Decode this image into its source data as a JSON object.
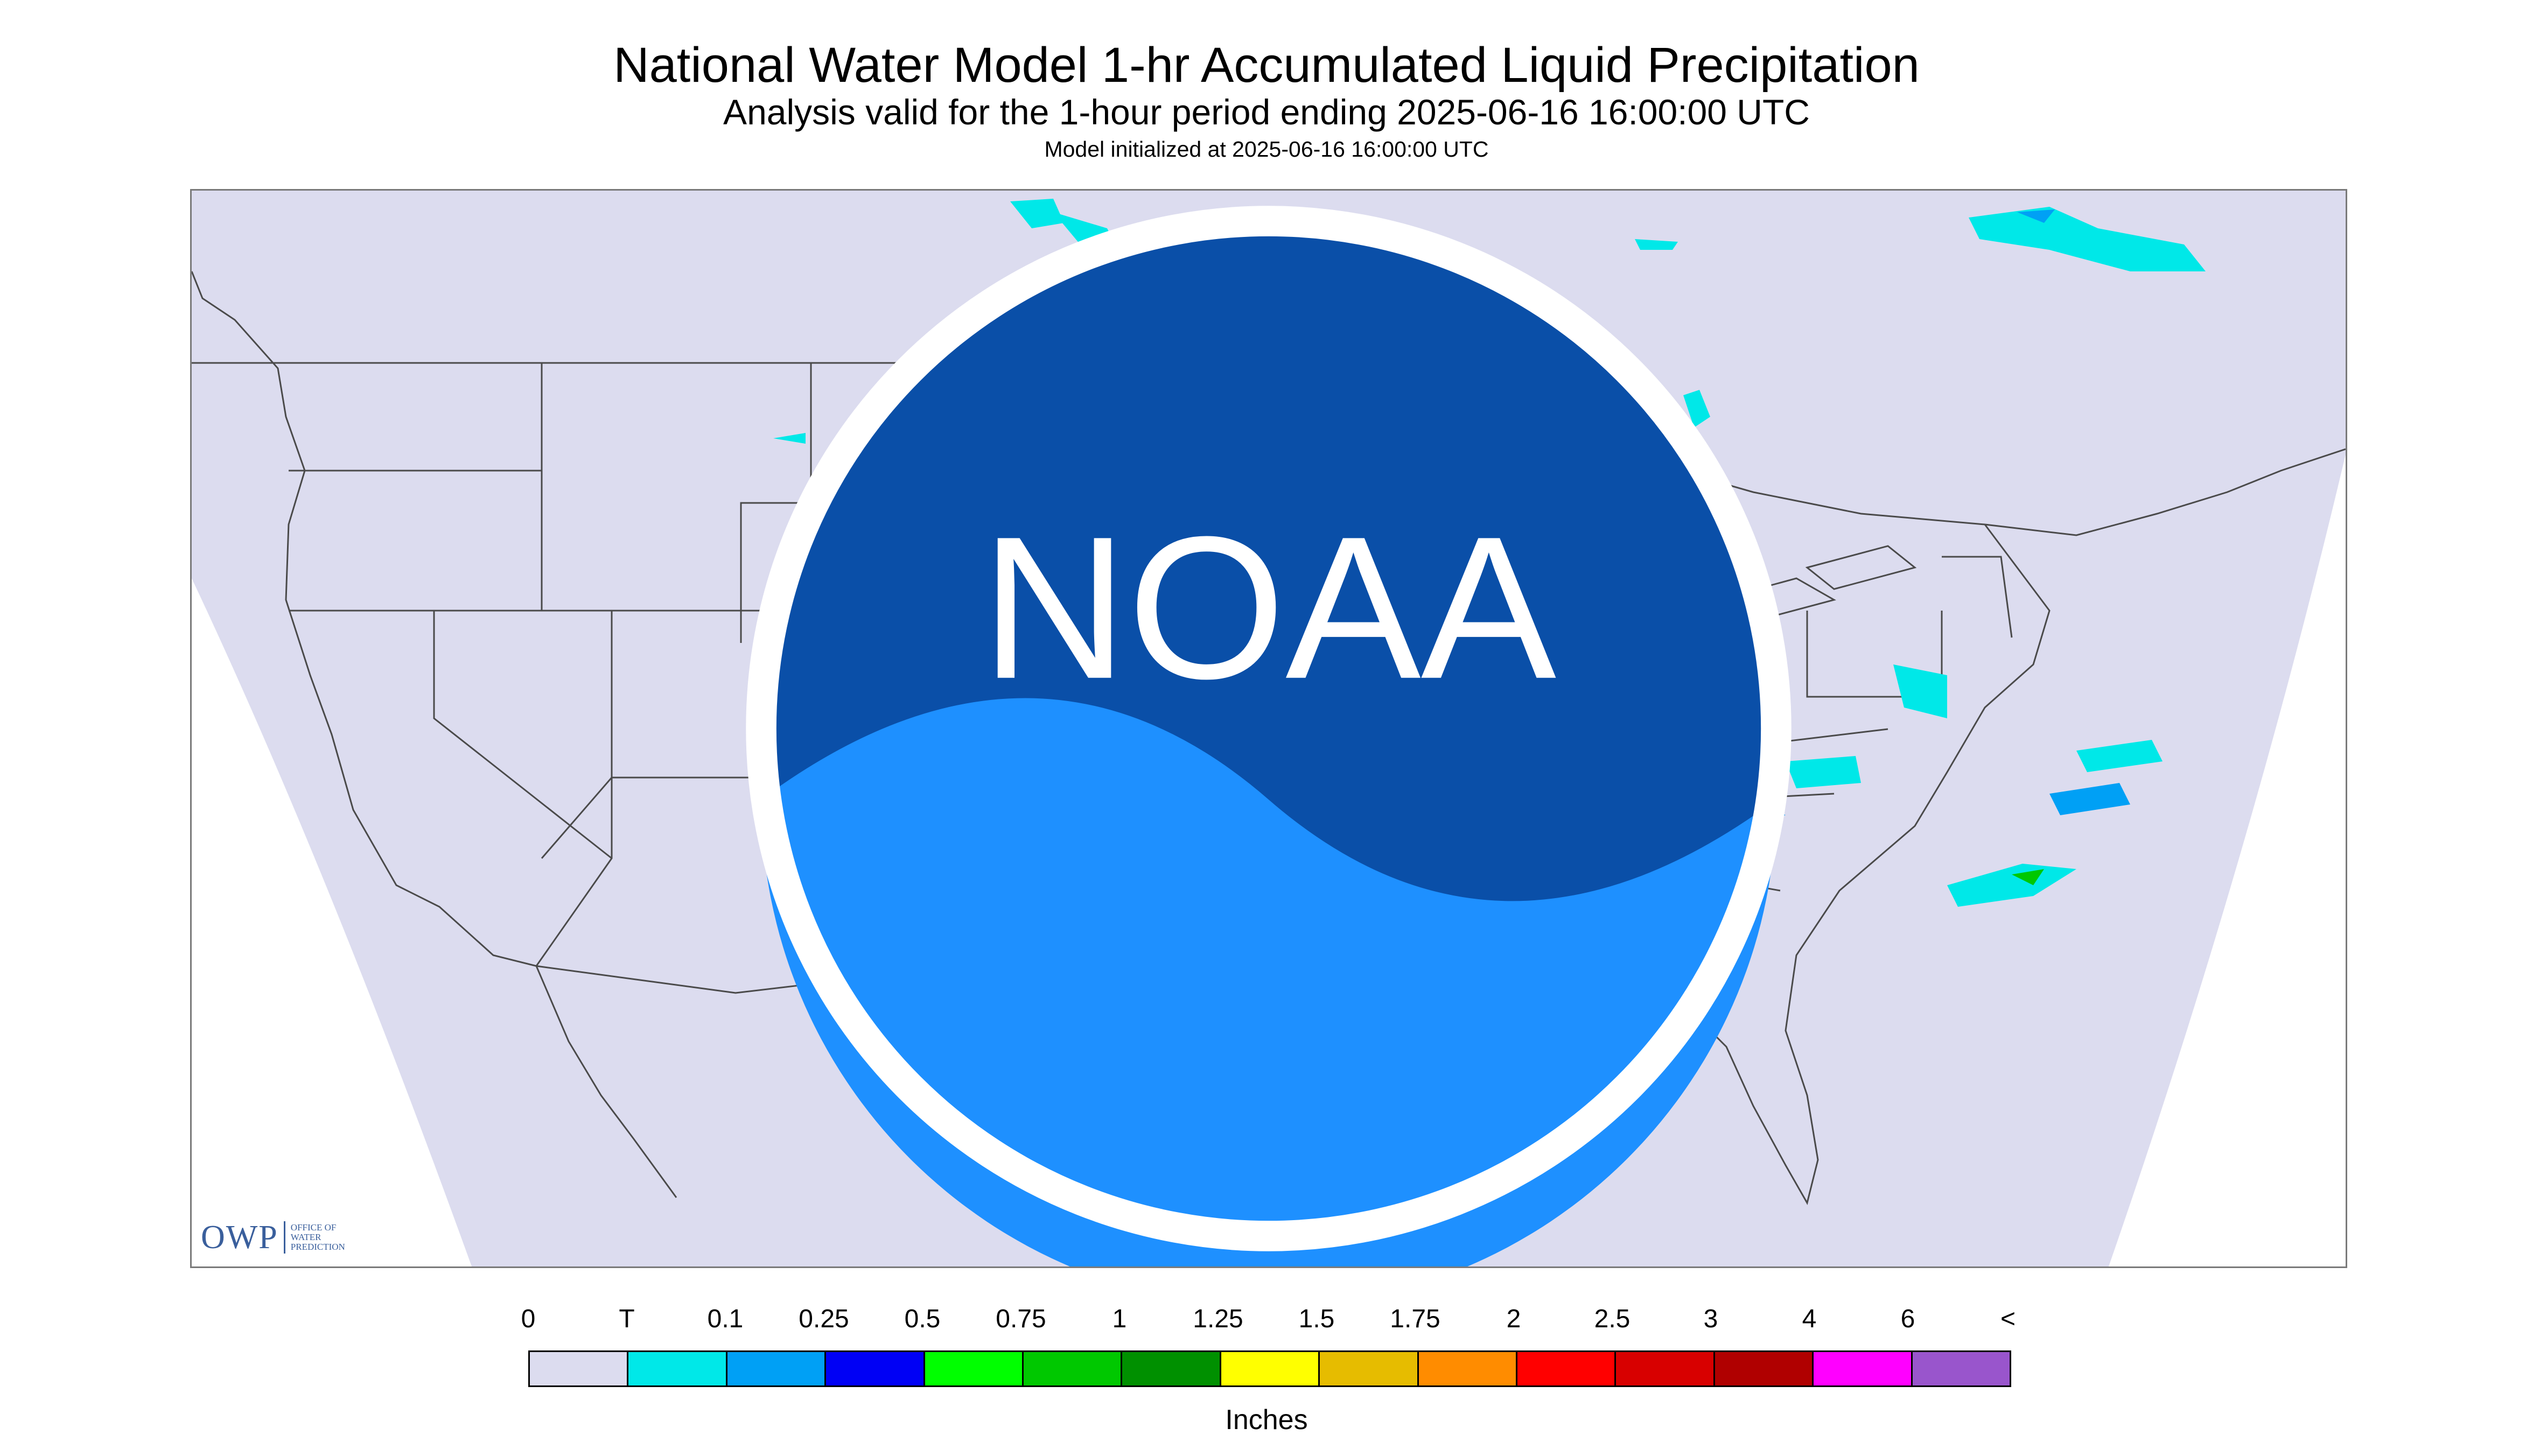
{
  "title": "National Water Model 1-hr Accumulated Liquid Precipitation",
  "subtitle": "Analysis valid for the 1-hour period ending 2025-06-16 16:00:00 UTC",
  "init_line": "Model initialized at 2025-06-16 16:00:00 UTC",
  "logos": {
    "owp_abbrev": "OWP",
    "owp_full_lines": [
      "OFFICE OF",
      "WATER",
      "PREDICTION"
    ],
    "noaa": "NOAA"
  },
  "legend": {
    "labels": [
      "0",
      "T",
      "0.1",
      "0.25",
      "0.5",
      "0.75",
      "1",
      "1.25",
      "1.5",
      "1.75",
      "2",
      "2.5",
      "3",
      "4",
      "6",
      "<"
    ],
    "colors": [
      "#dcdcef",
      "#00e8e8",
      "#00a0f5",
      "#0000f5",
      "#00ff00",
      "#00c800",
      "#009000",
      "#ffff00",
      "#e6bc00",
      "#ff8c00",
      "#ff0000",
      "#d80000",
      "#b00000",
      "#ff00ff",
      "#9955cc"
    ],
    "units": "Inches"
  },
  "map": {
    "background_color": "#dcdcef",
    "outside_color": "#ffffff",
    "line_color": "#4a4a4a"
  }
}
